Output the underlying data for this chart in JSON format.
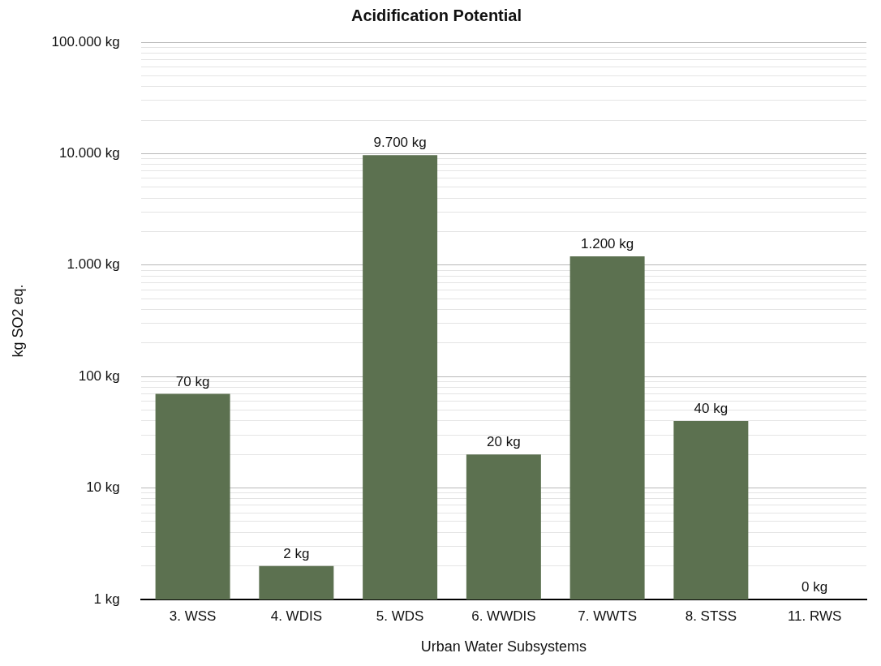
{
  "chart_data": {
    "type": "bar",
    "title": "Acidification Potential",
    "xlabel": "Urban Water Subsystems",
    "ylabel": "kg SO2 eq.",
    "categories": [
      "3. WSS",
      "4. WDIS",
      "5. WDS",
      "6. WWDIS",
      "7. WWTS",
      "8. STSS",
      "11. RWS"
    ],
    "values": [
      70,
      2,
      9700,
      20,
      1200,
      40,
      null
    ],
    "value_labels": [
      "70 kg",
      "2 kg",
      "9.700 kg",
      "20 kg",
      "1.200 kg",
      "40 kg",
      "0 kg"
    ],
    "color": "#5c7150",
    "log": "y",
    "grid": "y",
    "legend": false,
    "ylim": [
      1,
      100000
    ],
    "yticks": [
      {
        "value": 1,
        "label": "1 kg"
      },
      {
        "value": 2,
        "label": null
      },
      {
        "value": 3,
        "label": null
      },
      {
        "value": 4,
        "label": null
      },
      {
        "value": 5,
        "label": null
      },
      {
        "value": 6,
        "label": null
      },
      {
        "value": 7,
        "label": null
      },
      {
        "value": 8,
        "label": null
      },
      {
        "value": 9,
        "label": null
      },
      {
        "value": 10,
        "label": "10 kg"
      },
      {
        "value": 20,
        "label": null
      },
      {
        "value": 30,
        "label": null
      },
      {
        "value": 40,
        "label": null
      },
      {
        "value": 50,
        "label": null
      },
      {
        "value": 60,
        "label": null
      },
      {
        "value": 70,
        "label": null
      },
      {
        "value": 80,
        "label": null
      },
      {
        "value": 90,
        "label": null
      },
      {
        "value": 100,
        "label": "100 kg"
      },
      {
        "value": 200,
        "label": null
      },
      {
        "value": 300,
        "label": null
      },
      {
        "value": 400,
        "label": null
      },
      {
        "value": 500,
        "label": null
      },
      {
        "value": 600,
        "label": null
      },
      {
        "value": 700,
        "label": null
      },
      {
        "value": 800,
        "label": null
      },
      {
        "value": 900,
        "label": null
      },
      {
        "value": 1000,
        "label": "1.000 kg"
      },
      {
        "value": 2000,
        "label": null
      },
      {
        "value": 3000,
        "label": null
      },
      {
        "value": 4000,
        "label": null
      },
      {
        "value": 5000,
        "label": null
      },
      {
        "value": 6000,
        "label": null
      },
      {
        "value": 7000,
        "label": null
      },
      {
        "value": 8000,
        "label": null
      },
      {
        "value": 9000,
        "label": null
      },
      {
        "value": 10000,
        "label": "10.000 kg"
      },
      {
        "value": 20000,
        "label": null
      },
      {
        "value": 30000,
        "label": null
      },
      {
        "value": 40000,
        "label": null
      },
      {
        "value": 50000,
        "label": null
      },
      {
        "value": 60000,
        "label": null
      },
      {
        "value": 70000,
        "label": null
      },
      {
        "value": 80000,
        "label": null
      },
      {
        "value": 90000,
        "label": null
      },
      {
        "value": 100000,
        "label": "100.000 kg"
      }
    ]
  }
}
